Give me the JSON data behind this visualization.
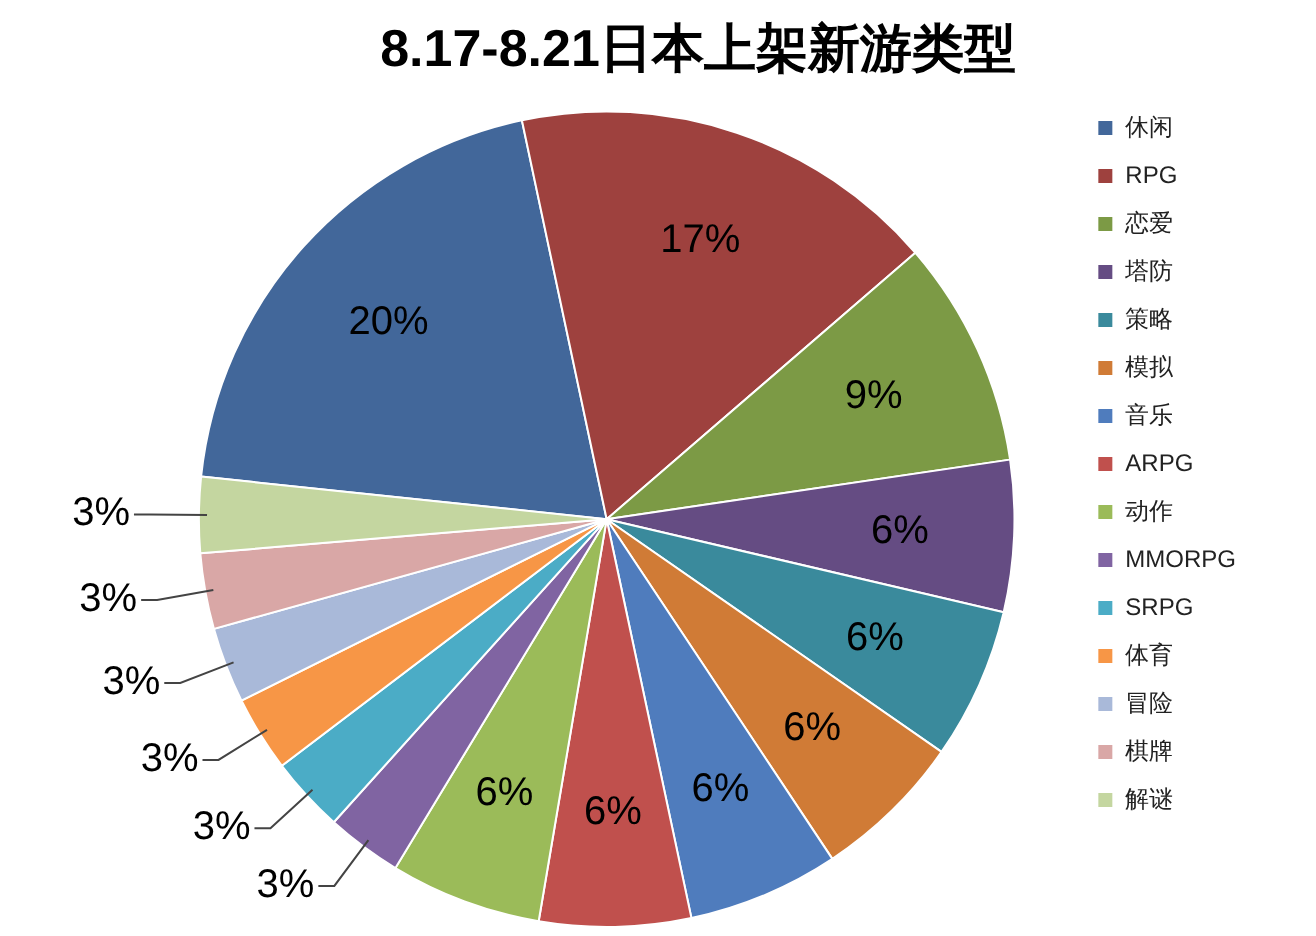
{
  "chart_data": {
    "type": "pie",
    "title": "8.17-8.21日本上架新游类型",
    "categories": [
      "休闲",
      "RPG",
      "恋爱",
      "塔防",
      "策略",
      "模拟",
      "音乐",
      "ARPG",
      "动作",
      "MMORPG",
      "SRPG",
      "体育",
      "冒险",
      "棋牌",
      "解谜"
    ],
    "values": [
      20,
      17,
      9,
      6,
      6,
      6,
      6,
      6,
      6,
      3,
      3,
      3,
      3,
      3,
      3
    ],
    "colors": [
      "#42679a",
      "#9e413e",
      "#7c9a45",
      "#654c83",
      "#3a8a9c",
      "#d07b36",
      "#4f7cbd",
      "#c0504d",
      "#9bbb59",
      "#8064a2",
      "#4bacc6",
      "#f79646",
      "#a9b9d9",
      "#d9a7a6",
      "#c4d6a0"
    ],
    "value_labels": [
      "20%",
      "17%",
      "9%",
      "6%",
      "6%",
      "6%",
      "6%",
      "6%",
      "6%",
      "3%",
      "3%",
      "3%",
      "3%",
      "3%",
      "3%"
    ],
    "legend": "right"
  }
}
